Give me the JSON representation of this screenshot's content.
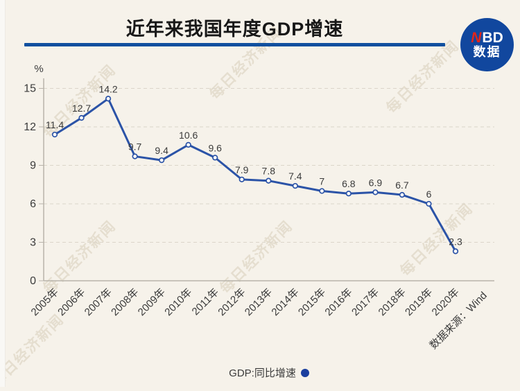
{
  "page": {
    "background": "#f6f2ea"
  },
  "header": {
    "title": "近年来我国年度GDP增速",
    "divider_color": "#0f509f",
    "logo": {
      "circle_color": "#11479e",
      "n": "N",
      "bd": "BD",
      "sub": "数据",
      "n_color": "#e1251b"
    }
  },
  "watermark": {
    "text": "每日经济新闻"
  },
  "chart_data": {
    "type": "line",
    "title": "近年来我国年度GDP增速",
    "unit_label": "%",
    "categories": [
      "2005年",
      "2006年",
      "2007年",
      "2008年",
      "2009年",
      "2010年",
      "2011年",
      "2012年",
      "2013年",
      "2014年",
      "2015年",
      "2016年",
      "2017年",
      "2018年",
      "2019年",
      "2020年"
    ],
    "series": [
      {
        "name": "GDP:同比增速",
        "values": [
          11.4,
          12.7,
          14.2,
          9.7,
          9.4,
          10.6,
          9.6,
          7.9,
          7.8,
          7.4,
          7,
          6.8,
          6.9,
          6.7,
          6,
          2.3
        ],
        "color": "#2b53a7"
      }
    ],
    "ylim": [
      0,
      15
    ],
    "yticks": [
      0,
      3,
      6,
      9,
      12,
      15
    ],
    "grid": "horizontal-dashed",
    "legend_position": "bottom-center",
    "source_note": "数据来源：Wind"
  },
  "legend": {
    "label": "GDP:同比增速",
    "dot_color": "#1b3f9e"
  }
}
